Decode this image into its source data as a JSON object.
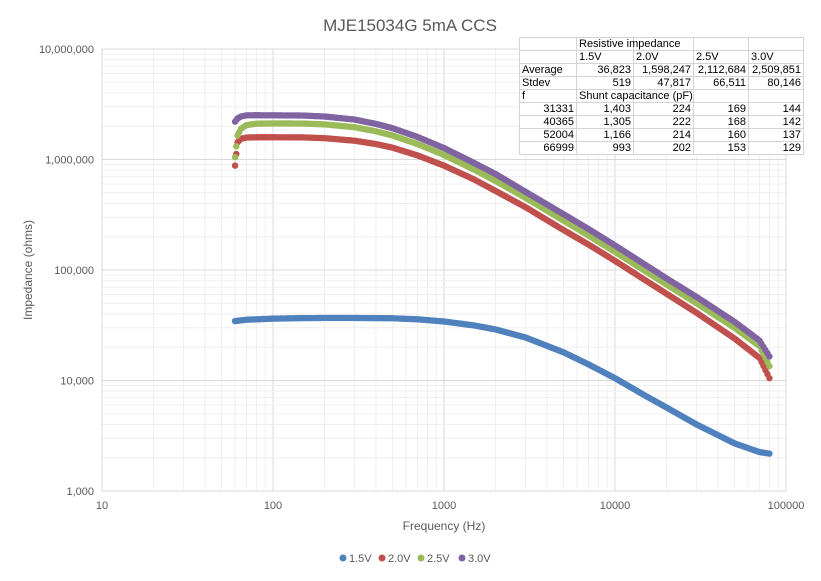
{
  "chart_data": {
    "type": "scatter",
    "title": "MJE15034G 5mA CCS",
    "xlabel": "Frequency (Hz)",
    "ylabel": "Impedance (ohms)",
    "xscale": "log",
    "yscale": "log",
    "xlim": [
      10,
      100000
    ],
    "ylim": [
      1000,
      10000000
    ],
    "grid": true,
    "legend": "bottom",
    "x_ticks": [
      "10",
      "100",
      "1000",
      "10000",
      "100000"
    ],
    "y_ticks": [
      "1,000",
      "10,000",
      "100,000",
      "1,000,000",
      "10,000,000"
    ],
    "series": [
      {
        "name": "1.5V",
        "color": "#4f81bd",
        "x": [
          60,
          70,
          100,
          150,
          200,
          300,
          500,
          700,
          1000,
          1500,
          2000,
          3000,
          5000,
          7000,
          10000,
          15000,
          20000,
          30000,
          50000,
          70000,
          80000
        ],
        "y": [
          34500,
          35500,
          36300,
          36700,
          36800,
          36800,
          36600,
          35800,
          34200,
          31500,
          29000,
          24500,
          18000,
          14000,
          10500,
          7300,
          5700,
          4000,
          2700,
          2250,
          2180
        ]
      },
      {
        "name": "2.0V",
        "color": "#c0504d",
        "x": [
          60,
          62,
          65,
          70,
          80,
          100,
          150,
          200,
          300,
          400,
          500,
          700,
          1000,
          1500,
          2000,
          3000,
          5000,
          7000,
          10000,
          20000,
          30000,
          50000,
          70000,
          80000
        ],
        "y": [
          880000,
          1430000,
          1540000,
          1580000,
          1590000,
          1590000,
          1585000,
          1560000,
          1480000,
          1380000,
          1280000,
          1090000,
          880000,
          660000,
          520000,
          370000,
          230000,
          170000,
          121000,
          61000,
          41000,
          24000,
          16000,
          10500
        ]
      },
      {
        "name": "2.5V",
        "color": "#9bbb59",
        "x": [
          60,
          62,
          65,
          70,
          80,
          100,
          150,
          200,
          300,
          400,
          500,
          700,
          1000,
          1500,
          2000,
          3000,
          5000,
          7000,
          10000,
          20000,
          30000,
          50000,
          70000,
          80000
        ],
        "y": [
          1050000,
          1650000,
          1900000,
          2050000,
          2110000,
          2120000,
          2115000,
          2080000,
          1960000,
          1800000,
          1650000,
          1380000,
          1100000,
          810000,
          640000,
          450000,
          280000,
          205000,
          146000,
          74000,
          50000,
          30000,
          20500,
          13500
        ]
      },
      {
        "name": "3.0V",
        "color": "#8064a2",
        "x": [
          60,
          62,
          65,
          70,
          80,
          100,
          150,
          200,
          300,
          400,
          500,
          700,
          1000,
          1500,
          2000,
          3000,
          5000,
          7000,
          10000,
          20000,
          30000,
          50000,
          70000,
          80000
        ],
        "y": [
          2200000,
          2350000,
          2450000,
          2510000,
          2515000,
          2510000,
          2500000,
          2450000,
          2300000,
          2100000,
          1920000,
          1600000,
          1270000,
          930000,
          740000,
          510000,
          320000,
          235000,
          167000,
          84000,
          57000,
          34000,
          23000,
          16500
        ]
      }
    ]
  },
  "table": {
    "rows": [
      [
        "",
        "Resistive impedance",
        "",
        "",
        ""
      ],
      [
        "",
        "1.5V",
        "2.0V",
        "2.5V",
        "3.0V"
      ],
      [
        "Average",
        "36,823",
        "1,598,247",
        "2,112,684",
        "2,509,851"
      ],
      [
        "Stdev",
        "519",
        "47,817",
        "66,511",
        "80,146"
      ],
      [
        "f",
        "Shunt capacitance (pF)",
        "",
        "",
        ""
      ],
      [
        "31331",
        "1,403",
        "224",
        "169",
        "144"
      ],
      [
        "40365",
        "1,305",
        "222",
        "168",
        "142"
      ],
      [
        "52004",
        "1,166",
        "214",
        "160",
        "137"
      ],
      [
        "66999",
        "993",
        "202",
        "153",
        "129"
      ]
    ]
  }
}
